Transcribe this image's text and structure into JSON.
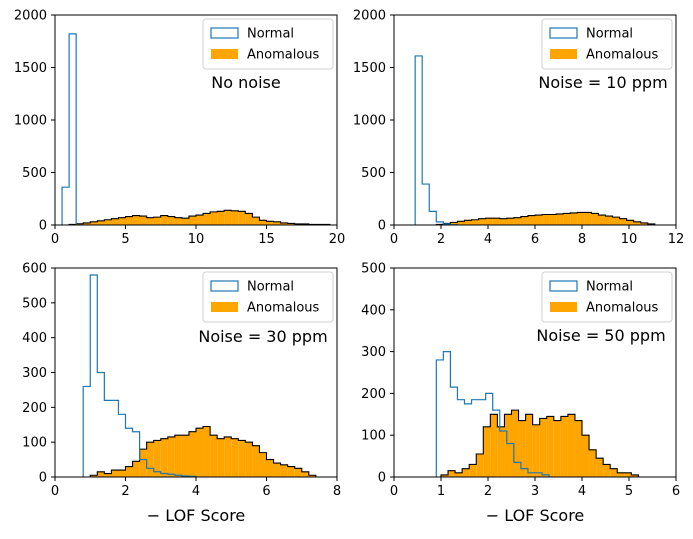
{
  "colors": {
    "normal": "#1f77b4",
    "anomalous": "#ffa500",
    "anomalous_edge": "#000000"
  },
  "chart_data": [
    {
      "type": "histogram",
      "annotation": "No noise",
      "xlabel": "",
      "xlim": [
        0,
        20
      ],
      "ylim": [
        0,
        2000
      ],
      "xticks": [
        0,
        5,
        10,
        15,
        20
      ],
      "yticks": [
        0,
        500,
        1000,
        1500,
        2000
      ],
      "legend": [
        "Normal",
        "Anomalous"
      ],
      "series": [
        {
          "name": "Normal",
          "style": "step",
          "edges": [
            0.5,
            1.0,
            1.5
          ],
          "counts": [
            360,
            1820
          ]
        },
        {
          "name": "Anomalous",
          "style": "filled",
          "edges": [
            0,
            0.5,
            1,
            1.5,
            2,
            2.5,
            3,
            3.5,
            4,
            4.5,
            5,
            5.5,
            6,
            6.5,
            7,
            7.5,
            8,
            8.5,
            9,
            9.5,
            10,
            10.5,
            11,
            11.5,
            12,
            12.5,
            13,
            13.5,
            14,
            14.5,
            15,
            15.5,
            16,
            16.5,
            17,
            17.5,
            18,
            18.5,
            19,
            19.5,
            20
          ],
          "counts": [
            0,
            0,
            5,
            12,
            20,
            30,
            40,
            50,
            60,
            70,
            80,
            90,
            85,
            70,
            75,
            90,
            80,
            70,
            65,
            85,
            95,
            110,
            125,
            130,
            140,
            135,
            130,
            110,
            75,
            45,
            35,
            30,
            20,
            15,
            10,
            10,
            5,
            5,
            5,
            0
          ]
        }
      ]
    },
    {
      "type": "histogram",
      "annotation": "Noise = 10 ppm",
      "xlabel": "",
      "xlim": [
        0,
        12
      ],
      "ylim": [
        0,
        2000
      ],
      "xticks": [
        0,
        2,
        4,
        6,
        8,
        10,
        12
      ],
      "yticks": [
        0,
        500,
        1000,
        1500,
        2000
      ],
      "legend": [
        "Normal",
        "Anomalous"
      ],
      "series": [
        {
          "name": "Normal",
          "style": "step",
          "edges": [
            0.9,
            1.2,
            1.5,
            1.8,
            2.1,
            2.4,
            2.7
          ],
          "counts": [
            1610,
            390,
            130,
            30,
            10,
            3
          ]
        },
        {
          "name": "Anomalous",
          "style": "filled",
          "edges": [
            1.5,
            1.8,
            2.1,
            2.4,
            2.7,
            3,
            3.3,
            3.6,
            3.9,
            4.2,
            4.5,
            4.8,
            5.1,
            5.4,
            5.7,
            6,
            6.3,
            6.6,
            6.9,
            7.2,
            7.5,
            7.8,
            8.1,
            8.4,
            8.7,
            9,
            9.3,
            9.6,
            9.9,
            10.2,
            10.5,
            10.8,
            11.1,
            11.4
          ],
          "counts": [
            0,
            5,
            15,
            25,
            35,
            45,
            50,
            60,
            65,
            65,
            60,
            65,
            70,
            80,
            90,
            95,
            100,
            100,
            105,
            110,
            115,
            120,
            120,
            110,
            95,
            85,
            75,
            60,
            45,
            30,
            20,
            10,
            0
          ]
        }
      ]
    },
    {
      "type": "histogram",
      "annotation": "Noise = 30 ppm",
      "xlabel": "− LOF Score",
      "xlim": [
        0,
        8
      ],
      "ylim": [
        0,
        600
      ],
      "xticks": [
        0,
        2,
        4,
        6,
        8
      ],
      "yticks": [
        0,
        100,
        200,
        300,
        400,
        500,
        600
      ],
      "legend": [
        "Normal",
        "Anomalous"
      ],
      "series": [
        {
          "name": "Normal",
          "style": "step",
          "edges": [
            0.8,
            1.0,
            1.2,
            1.4,
            1.6,
            1.8,
            2.0,
            2.2,
            2.4,
            2.6,
            2.8,
            3.0,
            3.2,
            3.4,
            3.6,
            3.8,
            4.0
          ],
          "counts": [
            260,
            580,
            300,
            220,
            220,
            180,
            140,
            130,
            50,
            25,
            15,
            10,
            8,
            5,
            3,
            2
          ]
        },
        {
          "name": "Anomalous",
          "style": "filled",
          "edges": [
            1,
            1.2,
            1.4,
            1.6,
            1.8,
            2,
            2.2,
            2.4,
            2.6,
            2.8,
            3,
            3.2,
            3.4,
            3.6,
            3.8,
            4,
            4.2,
            4.4,
            4.6,
            4.8,
            5,
            5.2,
            5.4,
            5.6,
            5.8,
            6,
            6.2,
            6.4,
            6.6,
            6.8,
            7,
            7.2,
            7.4
          ],
          "counts": [
            5,
            15,
            10,
            20,
            20,
            30,
            45,
            80,
            100,
            105,
            110,
            115,
            120,
            120,
            130,
            140,
            145,
            120,
            110,
            115,
            110,
            105,
            100,
            90,
            70,
            50,
            40,
            35,
            30,
            25,
            15,
            5
          ]
        }
      ]
    },
    {
      "type": "histogram",
      "annotation": "Noise = 50 ppm",
      "xlabel": "− LOF Score",
      "xlim": [
        0,
        6
      ],
      "ylim": [
        0,
        500
      ],
      "xticks": [
        0,
        1,
        2,
        3,
        4,
        5,
        6
      ],
      "yticks": [
        0,
        100,
        200,
        300,
        400,
        500
      ],
      "legend": [
        "Normal",
        "Anomalous"
      ],
      "series": [
        {
          "name": "Normal",
          "style": "step",
          "edges": [
            0.9,
            1.05,
            1.2,
            1.35,
            1.5,
            1.65,
            1.8,
            1.95,
            2.1,
            2.25,
            2.4,
            2.55,
            2.7,
            2.85,
            3.0,
            3.15,
            3.3
          ],
          "counts": [
            280,
            300,
            215,
            185,
            175,
            185,
            185,
            200,
            160,
            110,
            80,
            35,
            20,
            10,
            10,
            5
          ]
        },
        {
          "name": "Anomalous",
          "style": "filled",
          "edges": [
            1,
            1.15,
            1.3,
            1.45,
            1.6,
            1.75,
            1.9,
            2.05,
            2.2,
            2.35,
            2.5,
            2.65,
            2.8,
            2.95,
            3.1,
            3.25,
            3.4,
            3.55,
            3.7,
            3.85,
            4,
            4.15,
            4.3,
            4.45,
            4.6,
            4.75,
            4.9,
            5.05,
            5.2,
            5.35
          ],
          "counts": [
            5,
            15,
            10,
            20,
            30,
            55,
            120,
            150,
            120,
            150,
            160,
            135,
            150,
            125,
            140,
            145,
            135,
            145,
            150,
            135,
            100,
            65,
            45,
            30,
            20,
            10,
            10,
            5,
            0
          ]
        }
      ]
    }
  ]
}
